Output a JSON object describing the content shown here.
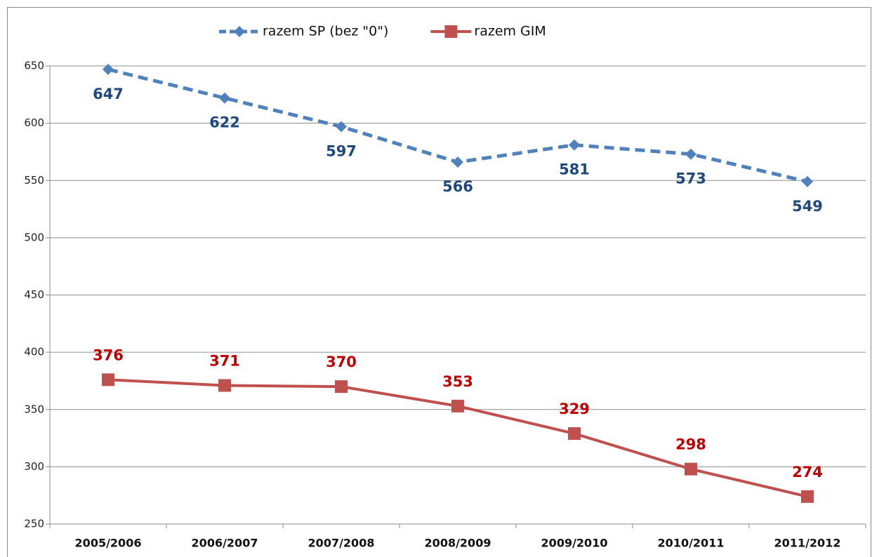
{
  "chart_data": {
    "type": "line",
    "categories": [
      "2005/2006",
      "2006/2007",
      "2007/2008",
      "2008/2009",
      "2009/2010",
      "2010/2011",
      "2011/2012"
    ],
    "series": [
      {
        "name": "razem SP (bez \"0\")",
        "color": "#4f81bd",
        "label_color": "#1f497d",
        "marker": "diamond",
        "dashed": true,
        "label_position": "below",
        "values": [
          647,
          622,
          597,
          566,
          581,
          573,
          549
        ]
      },
      {
        "name": "razem GIM",
        "color": "#c0504d",
        "label_color": "#c00000",
        "marker": "square",
        "dashed": false,
        "label_position": "above",
        "values": [
          376,
          371,
          370,
          353,
          329,
          298,
          274
        ]
      }
    ],
    "ylim": [
      250,
      650
    ],
    "yticks": [
      250,
      300,
      350,
      400,
      450,
      500,
      550,
      600,
      650
    ],
    "grid": true,
    "legend": "top"
  }
}
